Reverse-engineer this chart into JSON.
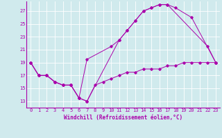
{
  "background_color": "#d0eaed",
  "grid_color": "#b8d8db",
  "line_color": "#aa00aa",
  "xlabel": "Windchill (Refroidissement éolien,°C)",
  "xlabel_fontsize": 5.5,
  "tick_fontsize": 5,
  "ylabel_ticks": [
    13,
    15,
    17,
    19,
    21,
    23,
    25,
    27
  ],
  "xlabel_ticks": [
    0,
    1,
    2,
    3,
    4,
    5,
    6,
    7,
    8,
    9,
    10,
    11,
    12,
    13,
    14,
    15,
    16,
    17,
    18,
    19,
    20,
    21,
    22,
    23
  ],
  "xlim": [
    -0.5,
    23.5
  ],
  "ylim": [
    12.0,
    28.5
  ],
  "line1_x": [
    0,
    1,
    2,
    3,
    4,
    5,
    6,
    7,
    11,
    12,
    13,
    14,
    15,
    16,
    17,
    22,
    23
  ],
  "line1_y": [
    19,
    17,
    17,
    16,
    15.5,
    15.5,
    13.5,
    13.0,
    22.5,
    24.0,
    25.5,
    27.0,
    27.5,
    28.0,
    28.0,
    21.5,
    19.0
  ],
  "line2_x": [
    0,
    1,
    2,
    3,
    4,
    5,
    6,
    7,
    10,
    11,
    12,
    13,
    14,
    15,
    16,
    17,
    18,
    20,
    23
  ],
  "line2_y": [
    19,
    17,
    17,
    16,
    15.5,
    15.5,
    13.5,
    19.5,
    21.5,
    22.5,
    24.0,
    25.5,
    27.0,
    27.5,
    28.0,
    28.0,
    27.5,
    26.0,
    19.0
  ],
  "line3_x": [
    0,
    1,
    2,
    3,
    4,
    5,
    6,
    7,
    8,
    9,
    10,
    11,
    12,
    13,
    14,
    15,
    16,
    17,
    18,
    19,
    20,
    21,
    22,
    23
  ],
  "line3_y": [
    19,
    17,
    17,
    16,
    15.5,
    15.5,
    13.5,
    13.0,
    15.5,
    16.0,
    16.5,
    17.0,
    17.5,
    17.5,
    18.0,
    18.0,
    18.0,
    18.5,
    18.5,
    19.0,
    19.0,
    19.0,
    19.0,
    19.0
  ]
}
